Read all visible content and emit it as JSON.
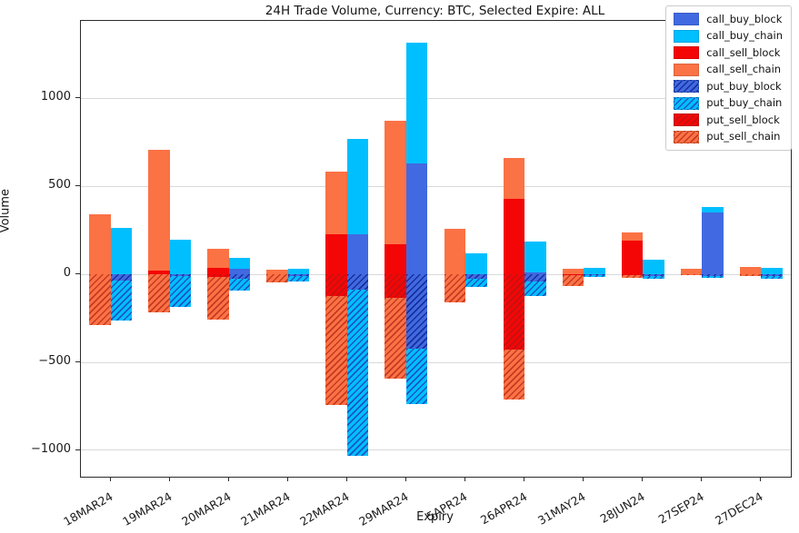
{
  "chart_data": {
    "type": "bar",
    "stacked": true,
    "title": "24H Trade Volume, Currency: BTC, Selected Expire: ALL",
    "xlabel": "Expiry",
    "ylabel": "Volume",
    "grid": true,
    "legend_position": "upper right",
    "ylim": [
      -1150,
      1440
    ],
    "yticks": [
      -1000,
      -500,
      0,
      500,
      1000
    ],
    "categories": [
      "18MAR24",
      "19MAR24",
      "20MAR24",
      "21MAR24",
      "22MAR24",
      "29MAR24",
      "5APR24",
      "26APR24",
      "31MAY24",
      "28JUN24",
      "27SEP24",
      "27DEC24"
    ],
    "series": [
      {
        "name": "call_buy_block",
        "bar": "buy",
        "color": "#4169E1",
        "hatch": false,
        "hatch_color": "#16309c",
        "values": [
          0,
          0,
          30,
          0,
          230,
          630,
          0,
          10,
          0,
          0,
          350,
          0
        ]
      },
      {
        "name": "call_buy_chain",
        "bar": "buy",
        "color": "#00BFFF",
        "hatch": false,
        "hatch_color": "#1a56c4",
        "values": [
          265,
          195,
          65,
          30,
          540,
          685,
          120,
          175,
          35,
          85,
          30,
          35
        ]
      },
      {
        "name": "call_sell_block",
        "bar": "sell",
        "color": "#F40606",
        "hatch": false,
        "hatch_color": "#b30000",
        "values": [
          0,
          20,
          35,
          0,
          225,
          170,
          0,
          430,
          0,
          190,
          0,
          0
        ]
      },
      {
        "name": "call_sell_chain",
        "bar": "sell",
        "color": "#FB7245",
        "hatch": false,
        "hatch_color": "#c63a22",
        "values": [
          340,
          685,
          110,
          25,
          360,
          700,
          260,
          230,
          30,
          50,
          30,
          40
        ]
      },
      {
        "name": "put_buy_block",
        "bar": "buy",
        "color": "#4169E1",
        "hatch": true,
        "hatch_color": "#16309c",
        "values": [
          -35,
          -10,
          -25,
          -10,
          -85,
          -425,
          -25,
          -40,
          -5,
          -10,
          -10,
          -10
        ]
      },
      {
        "name": "put_buy_chain",
        "bar": "buy",
        "color": "#00BFFF",
        "hatch": true,
        "hatch_color": "#1a56c4",
        "values": [
          -230,
          -175,
          -65,
          -30,
          -945,
          -310,
          -45,
          -85,
          -10,
          -15,
          -10,
          -15
        ]
      },
      {
        "name": "put_sell_block",
        "bar": "sell",
        "color": "#F40606",
        "hatch": true,
        "hatch_color": "#c11212",
        "values": [
          0,
          0,
          -15,
          0,
          -125,
          -135,
          0,
          -430,
          -5,
          -5,
          0,
          0
        ]
      },
      {
        "name": "put_sell_chain",
        "bar": "sell",
        "color": "#FB7245",
        "hatch": true,
        "hatch_color": "#c63a22",
        "values": [
          -290,
          -215,
          -245,
          -45,
          -620,
          -460,
          -160,
          -280,
          -60,
          -15,
          -5,
          -10
        ]
      }
    ]
  }
}
